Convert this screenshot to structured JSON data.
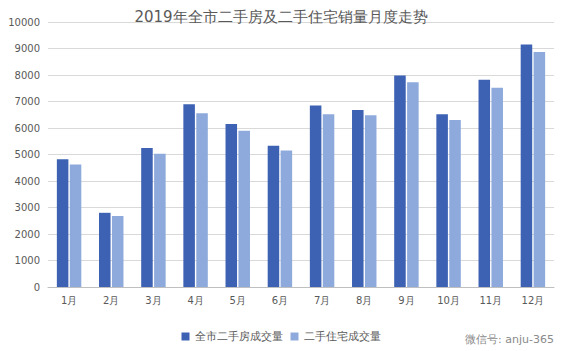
{
  "chart_data": {
    "type": "bar",
    "title": "2019年全市二手房及二手住宅销量月度走势",
    "categories": [
      "1月",
      "2月",
      "3月",
      "4月",
      "5月",
      "6月",
      "7月",
      "8月",
      "9月",
      "10月",
      "11月",
      "12月"
    ],
    "series": [
      {
        "name": "全市二手房成交量",
        "color": "#3d62b3",
        "values": [
          4820,
          2800,
          5250,
          6900,
          6150,
          5330,
          6850,
          6680,
          7980,
          6520,
          7820,
          9150
        ]
      },
      {
        "name": "二手住宅成交量",
        "color": "#8eaadc",
        "values": [
          4620,
          2680,
          5030,
          6560,
          5900,
          5150,
          6520,
          6480,
          7730,
          6300,
          7520,
          8870
        ]
      }
    ],
    "ylim": [
      0,
      10000
    ],
    "yticks": [
      0,
      1000,
      2000,
      3000,
      4000,
      5000,
      6000,
      7000,
      8000,
      9000,
      10000
    ],
    "grid": true,
    "legend": "bottom",
    "annotation": "微信号: anju-365"
  }
}
